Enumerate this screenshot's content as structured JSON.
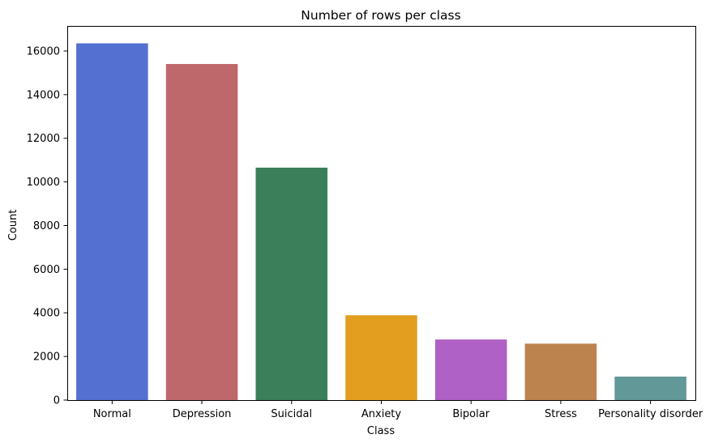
{
  "chart_data": {
    "type": "bar",
    "title": "Number of rows per class",
    "xlabel": "Class",
    "ylabel": "Count",
    "categories": [
      "Normal",
      "Depression",
      "Suicidal",
      "Anxiety",
      "Bipolar",
      "Stress",
      "Personality disorder"
    ],
    "values": [
      16351,
      15404,
      10653,
      3888,
      2777,
      2587,
      1077
    ],
    "colors": [
      "#5470d0",
      "#bf686b",
      "#3a7f5a",
      "#e39e20",
      "#b061c5",
      "#bc834f",
      "#639898"
    ],
    "ylim": [
      0,
      17150
    ],
    "yticks": [
      0,
      2000,
      4000,
      6000,
      8000,
      10000,
      12000,
      14000,
      16000
    ],
    "grid": false,
    "legend": "none"
  }
}
